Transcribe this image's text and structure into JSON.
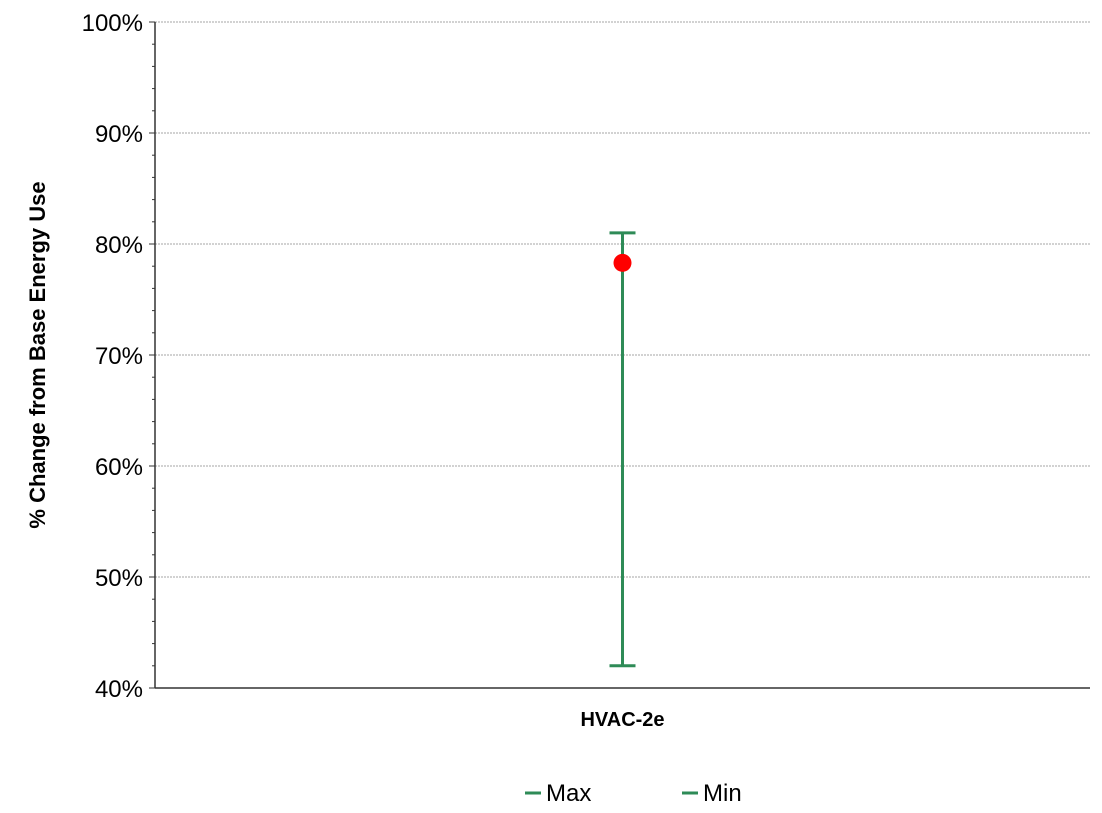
{
  "chart_data": {
    "type": "scatter",
    "title": "",
    "xlabel": "",
    "ylabel": "% Change from Base Energy Use",
    "categories": [
      "HVAC-2e"
    ],
    "ylim": [
      0.4,
      1.0
    ],
    "y_ticks": [
      "40%",
      "50%",
      "60%",
      "70%",
      "80%",
      "90%",
      "100%"
    ],
    "y_tick_values": [
      0.4,
      0.5,
      0.6,
      0.7,
      0.8,
      0.9,
      1.0
    ],
    "grid": true,
    "legend_position": "bottom",
    "legend": [
      "Max",
      "Min"
    ],
    "series": [
      {
        "name": "Max",
        "values": [
          0.81
        ]
      },
      {
        "name": "Min",
        "values": [
          0.42
        ]
      }
    ],
    "point_values": [
      0.783
    ],
    "colors": {
      "range": "#2e8b57",
      "point": "#ff0000",
      "grid": "#a6a6a6",
      "axis": "#333333",
      "text": "#000000"
    }
  }
}
